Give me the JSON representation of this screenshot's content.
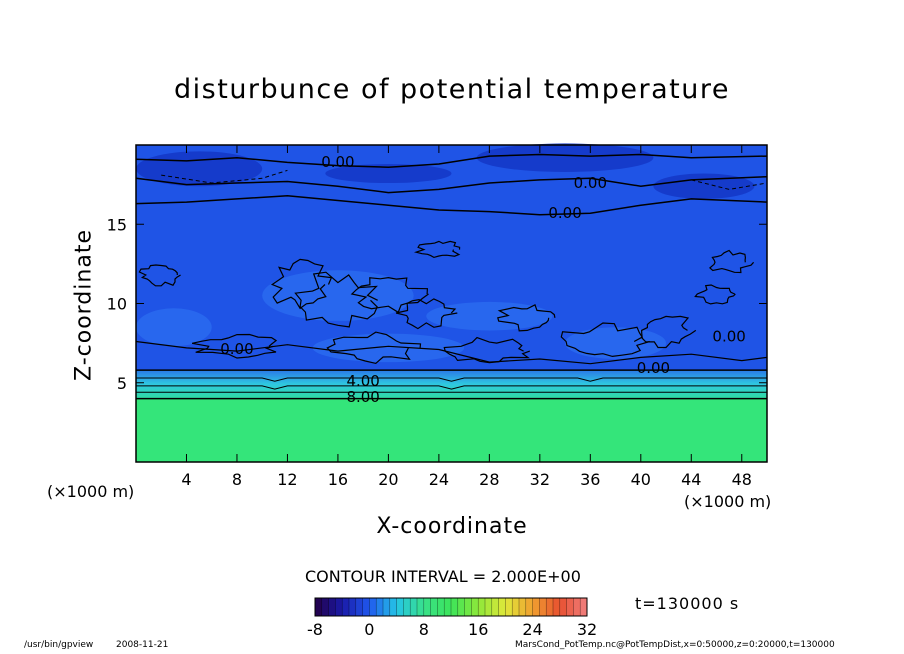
{
  "chart_data": {
    "type": "heatmap",
    "title": "disturbunce of potential temperature",
    "xlabel": "X-coordinate",
    "ylabel": "Z-coordinate",
    "x_unit": "(×1000 m)",
    "y_unit": "(×1000 m)",
    "xlim": [
      0,
      50
    ],
    "ylim": [
      0,
      20
    ],
    "x_ticks": [
      "4",
      "8",
      "12",
      "16",
      "20",
      "24",
      "28",
      "32",
      "36",
      "40",
      "44",
      "48"
    ],
    "y_ticks": [
      "5",
      "10",
      "15"
    ],
    "contour_labels": [
      "0.00",
      "0.00",
      "0.00",
      "0.00",
      "0.00",
      "0.00",
      "4.00",
      "8.00"
    ],
    "contour_interval": "CONTOUR INTERVAL = 2.000E+00",
    "colorbar": {
      "ticks": [
        "-8",
        "0",
        "8",
        "16",
        "24",
        "32"
      ],
      "range": [
        -8,
        32
      ]
    },
    "regions": [
      {
        "z_range": [
          0,
          4
        ],
        "value": 10
      },
      {
        "z_range": [
          4,
          5.8
        ],
        "value": 4
      },
      {
        "z_range": [
          5.8,
          20
        ],
        "value": -2
      }
    ],
    "time_label": "t=130000 s"
  },
  "footer": {
    "program": "/usr/bin/gpview",
    "date": "2008-11-21",
    "source": "MarsCond_PotTemp.nc@PotTempDist,x=0:50000,z=0:20000,t=130000"
  },
  "colors": {
    "lower_layer": "#34e57a",
    "transition": "#2fc8e0",
    "upper_field": "#1f54e6",
    "upper_dark": "#1438c8"
  }
}
